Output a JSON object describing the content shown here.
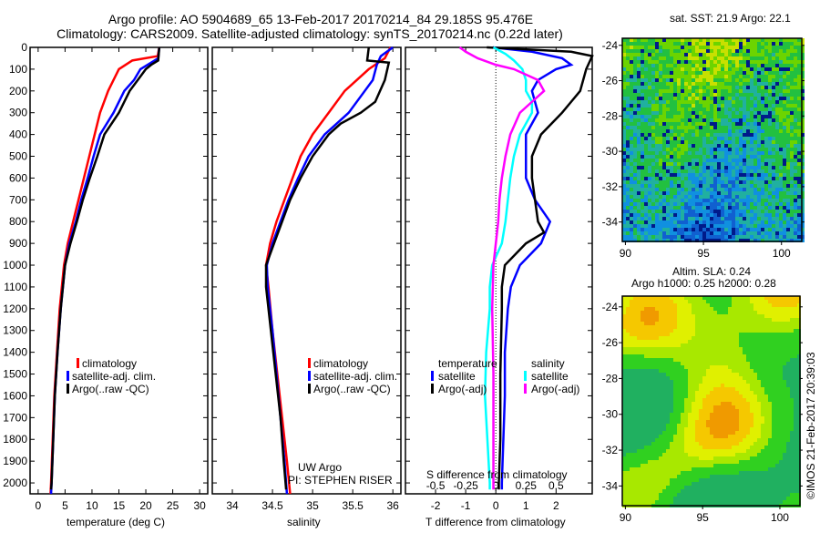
{
  "title": {
    "line1": "Argo profile: AO 5904689_65 13-Feb-2017 20170214_84 29.185S 95.476E",
    "line2": "Climatology: CARS2009. Satellite-adjusted climatology: synTS_20170214.nc (0.22d later)"
  },
  "colors": {
    "climatology": "#ff0000",
    "satellite": "#0000ff",
    "argo": "#000000",
    "sal_satellite": "#00ffff",
    "sal_argo": "#ff00ff"
  },
  "chart_data": [
    {
      "type": "line",
      "id": "temperature",
      "xlabel": "temperature (deg C)",
      "ylabel": "",
      "xlim": [
        -1.5,
        31.5
      ],
      "ylim": [
        2050,
        0
      ],
      "xticks": [
        0,
        5,
        10,
        15,
        20,
        25,
        30
      ],
      "yticks": [
        0,
        100,
        200,
        300,
        400,
        500,
        600,
        700,
        800,
        900,
        1000,
        1100,
        1200,
        1300,
        1400,
        1500,
        1600,
        1700,
        1800,
        1900,
        2000
      ],
      "legend": [
        "climatology",
        "satellite-adj. clim.",
        "Argo(..raw -QC)"
      ],
      "series": [
        {
          "name": "climatology",
          "color": "#ff0000",
          "depth": [
            0,
            40,
            60,
            100,
            150,
            200,
            300,
            400,
            500,
            600,
            700,
            800,
            900,
            1000,
            1200,
            1400,
            1600,
            1800,
            2000,
            2050
          ],
          "values": [
            22.5,
            22.2,
            17.5,
            15,
            14,
            13,
            11.5,
            10.5,
            9.5,
            8.5,
            7.5,
            6.5,
            5.5,
            4.8,
            4,
            3.5,
            3,
            2.7,
            2.4,
            2.3
          ]
        },
        {
          "name": "satellite-adj. clim.",
          "color": "#0000ff",
          "depth": [
            0,
            50,
            70,
            100,
            150,
            200,
            300,
            400,
            500,
            600,
            700,
            800,
            900,
            1000,
            1200,
            1400,
            1600,
            1800,
            2000,
            2050
          ],
          "values": [
            22.5,
            22.3,
            21,
            19,
            17.8,
            16,
            14,
            11.5,
            10.3,
            9.2,
            8,
            7,
            5.8,
            5,
            4.2,
            3.6,
            3.1,
            2.8,
            2.5,
            2.4
          ]
        },
        {
          "name": "Argo(..raw -QC)",
          "color": "#000000",
          "depth": [
            0,
            60,
            80,
            100,
            150,
            200,
            250,
            300,
            400,
            500,
            600,
            700,
            800,
            900,
            1000,
            1200,
            1400,
            1600,
            1800,
            2000,
            2030
          ],
          "values": [
            22.5,
            22.3,
            21,
            20,
            18.5,
            17,
            16,
            15,
            12.3,
            11,
            9.6,
            8.3,
            7.2,
            6,
            5,
            4.2,
            3.6,
            3.1,
            2.8,
            2.5,
            2.4
          ]
        }
      ]
    },
    {
      "type": "line",
      "id": "salinity",
      "xlabel": "salinity",
      "xlim": [
        33.75,
        36.1
      ],
      "ylim": [
        2050,
        0
      ],
      "xticks": [
        34,
        34.5,
        35,
        35.5,
        36
      ],
      "legend": [
        "climatology",
        "satellite-adj. clim.",
        "Argo(..raw -QC)"
      ],
      "annotation": [
        "UW Argo",
        "PI: STEPHEN RISER"
      ],
      "series": [
        {
          "name": "climatology",
          "color": "#ff0000",
          "depth": [
            0,
            50,
            100,
            200,
            300,
            400,
            500,
            600,
            700,
            800,
            900,
            1000,
            1100,
            1300,
            1500,
            1700,
            1900,
            2050
          ],
          "values": [
            35.97,
            35.9,
            35.7,
            35.4,
            35.2,
            35.0,
            34.85,
            34.75,
            34.65,
            34.55,
            34.47,
            34.42,
            34.45,
            34.5,
            34.56,
            34.62,
            34.68,
            34.72
          ]
        },
        {
          "name": "satellite-adj. clim.",
          "color": "#0000ff",
          "depth": [
            0,
            40,
            80,
            150,
            200,
            300,
            350,
            400,
            500,
            600,
            700,
            800,
            900,
            1000,
            1100,
            1300,
            1500,
            1700,
            1900,
            2050
          ],
          "values": [
            36.0,
            35.85,
            35.8,
            35.75,
            35.65,
            35.45,
            35.3,
            35.15,
            34.95,
            34.82,
            34.7,
            34.6,
            34.5,
            34.43,
            34.44,
            34.5,
            34.55,
            34.6,
            34.65,
            34.68
          ]
        },
        {
          "name": "Argo(..raw -QC)",
          "color": "#000000",
          "depth": [
            0,
            60,
            70,
            150,
            250,
            300,
            350,
            400,
            500,
            600,
            700,
            800,
            900,
            1000,
            1100,
            1300,
            1500,
            1700,
            1900,
            2030
          ],
          "values": [
            35.7,
            35.68,
            35.95,
            35.9,
            35.78,
            35.6,
            35.35,
            35.2,
            35.0,
            34.85,
            34.72,
            34.62,
            34.52,
            34.42,
            34.42,
            34.48,
            34.54,
            34.6,
            34.64,
            34.67
          ]
        }
      ]
    },
    {
      "type": "line",
      "id": "difference",
      "xlabel": "T difference from climatology",
      "x2label": "S difference from climatology",
      "xlim": [
        -3,
        3.2
      ],
      "x2lim": [
        -0.75,
        0.8
      ],
      "ylim": [
        2050,
        0
      ],
      "xticks": [
        -2,
        -1,
        0,
        1,
        2
      ],
      "x2ticks": [
        -0.5,
        -0.25,
        0,
        0.25,
        0.5
      ],
      "x2ticklabels": [
        "-0.5",
        "-0.25",
        "0",
        "0.25",
        "0.5"
      ],
      "legend_temperature": {
        "title": "temperature",
        "entries": [
          "satellite",
          "Argo(-adj)"
        ]
      },
      "legend_salinity": {
        "title": "salinity",
        "entries": [
          "satellite",
          "Argo(-adj)"
        ]
      },
      "series": [
        {
          "name": "T satellite",
          "axis": "T",
          "color": "#0000ff",
          "depth": [
            0,
            20,
            50,
            80,
            100,
            150,
            200,
            300,
            400,
            500,
            600,
            700,
            800,
            900,
            1000,
            1100,
            1200,
            1400,
            1600,
            1800,
            2000,
            2030
          ],
          "values": [
            -0.1,
            1.2,
            2.2,
            2.5,
            2.0,
            1.4,
            1.2,
            1.4,
            1.0,
            1.0,
            1.0,
            1.3,
            1.8,
            1.5,
            0.8,
            0.5,
            0.4,
            0.3,
            0.3,
            0.25,
            0.2,
            0.2
          ]
        },
        {
          "name": "T Argo(-adj)",
          "axis": "T",
          "color": "#000000",
          "depth": [
            0,
            20,
            40,
            100,
            200,
            250,
            300,
            400,
            500,
            600,
            700,
            800,
            850,
            900,
            1000,
            1100,
            1200,
            1500,
            1800,
            2000,
            2030
          ],
          "values": [
            -0.3,
            2.5,
            3.2,
            3.0,
            2.8,
            2.5,
            2.2,
            1.5,
            1.2,
            1.2,
            1.3,
            1.4,
            1.6,
            1.0,
            0.3,
            0.2,
            0.2,
            0.15,
            0.15,
            0.1,
            0.1
          ]
        },
        {
          "name": "S satellite",
          "axis": "S",
          "color": "#00ffff",
          "depth": [
            0,
            30,
            60,
            100,
            150,
            200,
            250,
            300,
            400,
            500,
            600,
            700,
            800,
            900,
            1000,
            1100,
            1200,
            1400,
            1600,
            1800,
            2000,
            2030
          ],
          "values": [
            -0.02,
            0.08,
            0.15,
            0.22,
            0.25,
            0.25,
            0.3,
            0.3,
            0.2,
            0.15,
            0.12,
            0.1,
            0.08,
            0.05,
            -0.03,
            -0.05,
            -0.05,
            -0.08,
            -0.09,
            -0.07,
            -0.05,
            -0.05
          ]
        },
        {
          "name": "S Argo(-adj)",
          "axis": "S",
          "color": "#ff00ff",
          "depth": [
            0,
            20,
            50,
            80,
            100,
            150,
            200,
            250,
            300,
            400,
            500,
            600,
            700,
            800,
            1000,
            1200,
            1500,
            1800,
            2000,
            2030
          ],
          "values": [
            -0.3,
            -0.25,
            -0.15,
            0.0,
            0.15,
            0.35,
            0.4,
            0.3,
            0.2,
            0.12,
            0.08,
            0.05,
            0.03,
            0.02,
            -0.02,
            -0.03,
            -0.02,
            -0.02,
            -0.02,
            -0.02
          ]
        }
      ]
    },
    {
      "type": "heatmap",
      "id": "sst-map",
      "title": "sat. SST: 21.9 Argo: 22.1",
      "xlim": [
        89.8,
        101.3
      ],
      "ylim": [
        -35.1,
        -23.6
      ],
      "xticks": [
        90,
        95,
        100
      ],
      "yticks": [
        -24,
        -26,
        -28,
        -30,
        -32,
        -34
      ]
    },
    {
      "type": "heatmap",
      "id": "sla-map",
      "title": "Altim. SLA: 0.24",
      "subtitle": "Argo h1000: 0.25 h2000: 0.28",
      "xlim": [
        89.8,
        101.3
      ],
      "ylim": [
        -35.1,
        -23.4
      ],
      "xticks": [
        90,
        95,
        100
      ],
      "yticks": [
        -24,
        -26,
        -28,
        -30,
        -32,
        -34
      ]
    }
  ],
  "footer": {
    "credit": "©IMOS 21-Feb-2017 20:39:03"
  }
}
